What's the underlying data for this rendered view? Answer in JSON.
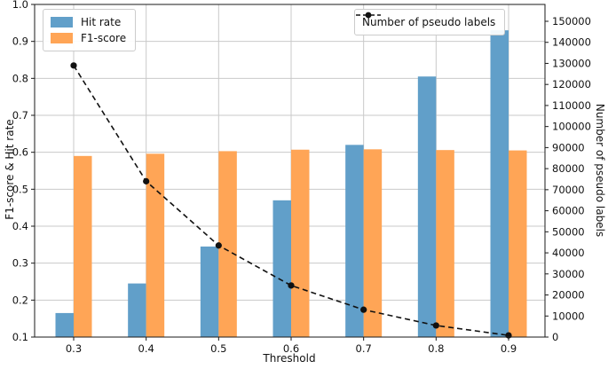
{
  "figure": {
    "background": "#ffffff",
    "text_color": "#111111",
    "grid_color": "#c9c9c9",
    "spine_color": "#1a1a1a"
  },
  "legends": {
    "bars": {
      "position": "upper-left",
      "items": [
        {
          "label": "Hit rate",
          "color": "#619fc9"
        },
        {
          "label": "F1-score",
          "color": "#ffa556"
        }
      ]
    },
    "line": {
      "position": "upper-right",
      "items": [
        {
          "label": "Number of pseudo labels",
          "marker": "dashed-dot",
          "color": "#111111"
        }
      ]
    }
  },
  "chart_data": {
    "type": "bar+line",
    "title": "",
    "xlabel": "Threshold",
    "ylabel_left": "F1-score & Hit rate",
    "ylabel_right": "Number of pseudo labels",
    "categories": [
      "0.3",
      "0.4",
      "0.5",
      "0.6",
      "0.7",
      "0.8",
      "0.9"
    ],
    "series": [
      {
        "name": "Hit rate",
        "type": "bar",
        "axis": "left",
        "color": "#619fc9",
        "values": [
          0.165,
          0.245,
          0.345,
          0.47,
          0.62,
          0.805,
          0.93
        ]
      },
      {
        "name": "F1-score",
        "type": "bar",
        "axis": "left",
        "color": "#ffa556",
        "values": [
          0.59,
          0.596,
          0.603,
          0.607,
          0.608,
          0.606,
          0.605
        ]
      },
      {
        "name": "Number of pseudo labels",
        "type": "line",
        "axis": "right",
        "color": "#111111",
        "linestyle": "dashed",
        "marker": "circle",
        "values": [
          129000,
          74000,
          43500,
          24500,
          13000,
          5500,
          800
        ]
      }
    ],
    "ylim_left": [
      0.1,
      1.0
    ],
    "ylim_right": [
      0,
      158000
    ],
    "yticks_left": [
      "0.1",
      "0.2",
      "0.3",
      "0.4",
      "0.5",
      "0.6",
      "0.7",
      "0.8",
      "0.9",
      "1.0"
    ],
    "yticks_right": [
      "0",
      "10000",
      "20000",
      "30000",
      "40000",
      "50000",
      "60000",
      "70000",
      "80000",
      "90000",
      "100000",
      "110000",
      "120000",
      "130000",
      "140000",
      "150000"
    ],
    "grid": true,
    "legend_positions": [
      "upper left",
      "upper right"
    ]
  }
}
